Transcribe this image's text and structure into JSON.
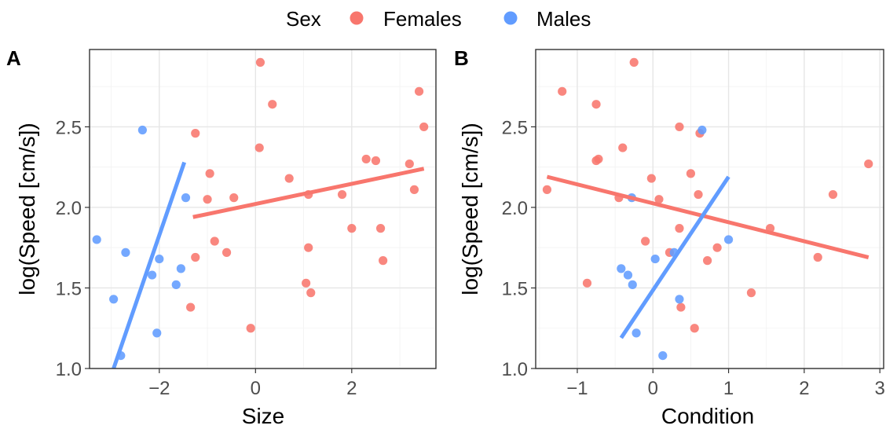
{
  "legend": {
    "title": "Sex",
    "items": [
      {
        "label": "Females",
        "color": "#F8766D"
      },
      {
        "label": "Males",
        "color": "#619CFF"
      }
    ]
  },
  "chart_data": [
    {
      "type": "scatter",
      "panel_label": "A",
      "xlabel": "Size",
      "ylabel": "log(Speed [cm/s])",
      "xlim": [
        -3.45,
        3.75
      ],
      "ylim": [
        1.0,
        2.98
      ],
      "xticks": [
        -2,
        0,
        2
      ],
      "yticks": [
        1.0,
        1.5,
        2.0,
        2.5
      ],
      "grid": true,
      "series": [
        {
          "name": "Females",
          "color": "#F8766D",
          "points": [
            {
              "x": 0.1,
              "y": 2.9
            },
            {
              "x": 0.35,
              "y": 2.64
            },
            {
              "x": 3.4,
              "y": 2.72
            },
            {
              "x": 3.5,
              "y": 2.5
            },
            {
              "x": -1.25,
              "y": 2.46
            },
            {
              "x": 0.08,
              "y": 2.37
            },
            {
              "x": 2.3,
              "y": 2.3
            },
            {
              "x": 2.5,
              "y": 2.29
            },
            {
              "x": 3.2,
              "y": 2.27
            },
            {
              "x": -0.95,
              "y": 2.21
            },
            {
              "x": 0.7,
              "y": 2.18
            },
            {
              "x": 3.3,
              "y": 2.11
            },
            {
              "x": 1.1,
              "y": 2.08
            },
            {
              "x": 1.8,
              "y": 2.08
            },
            {
              "x": -1.0,
              "y": 2.05
            },
            {
              "x": -0.45,
              "y": 2.06
            },
            {
              "x": 2.0,
              "y": 1.87
            },
            {
              "x": 2.6,
              "y": 1.87
            },
            {
              "x": -0.85,
              "y": 1.79
            },
            {
              "x": 1.1,
              "y": 1.75
            },
            {
              "x": -0.6,
              "y": 1.72
            },
            {
              "x": -1.25,
              "y": 1.69
            },
            {
              "x": 2.65,
              "y": 1.67
            },
            {
              "x": 1.05,
              "y": 1.53
            },
            {
              "x": 1.15,
              "y": 1.47
            },
            {
              "x": -1.35,
              "y": 1.38
            },
            {
              "x": -0.1,
              "y": 1.25
            }
          ],
          "fit": {
            "x": [
              -1.3,
              3.5
            ],
            "y": [
              1.94,
              2.24
            ]
          }
        },
        {
          "name": "Males",
          "color": "#619CFF",
          "points": [
            {
              "x": -2.35,
              "y": 2.48
            },
            {
              "x": -1.45,
              "y": 2.06
            },
            {
              "x": -3.3,
              "y": 1.8
            },
            {
              "x": -2.7,
              "y": 1.72
            },
            {
              "x": -2.0,
              "y": 1.68
            },
            {
              "x": -1.55,
              "y": 1.62
            },
            {
              "x": -2.15,
              "y": 1.58
            },
            {
              "x": -1.65,
              "y": 1.52
            },
            {
              "x": -2.95,
              "y": 1.43
            },
            {
              "x": -2.05,
              "y": 1.22
            },
            {
              "x": -2.8,
              "y": 1.08
            }
          ],
          "fit": {
            "x": [
              -2.95,
              -1.48
            ],
            "y": [
              1.0,
              2.28
            ]
          }
        }
      ]
    },
    {
      "type": "scatter",
      "panel_label": "B",
      "xlabel": "Condition",
      "ylabel": "log(Speed [cm/s])",
      "xlim": [
        -1.55,
        3.05
      ],
      "ylim": [
        1.0,
        2.98
      ],
      "xticks": [
        -1,
        0,
        1,
        2,
        3
      ],
      "yticks": [
        1.0,
        1.5,
        2.0,
        2.5
      ],
      "grid": true,
      "series": [
        {
          "name": "Females",
          "color": "#F8766D",
          "points": [
            {
              "x": -0.25,
              "y": 2.9
            },
            {
              "x": -1.2,
              "y": 2.72
            },
            {
              "x": -0.75,
              "y": 2.64
            },
            {
              "x": 0.35,
              "y": 2.5
            },
            {
              "x": 0.62,
              "y": 2.46
            },
            {
              "x": -0.4,
              "y": 2.37
            },
            {
              "x": -0.72,
              "y": 2.3
            },
            {
              "x": -0.75,
              "y": 2.29
            },
            {
              "x": 2.85,
              "y": 2.27
            },
            {
              "x": 0.5,
              "y": 2.21
            },
            {
              "x": -0.02,
              "y": 2.18
            },
            {
              "x": -1.4,
              "y": 2.11
            },
            {
              "x": 0.6,
              "y": 2.08
            },
            {
              "x": 2.38,
              "y": 2.08
            },
            {
              "x": 0.08,
              "y": 2.05
            },
            {
              "x": -0.45,
              "y": 2.06
            },
            {
              "x": 1.55,
              "y": 1.87
            },
            {
              "x": 0.35,
              "y": 1.87
            },
            {
              "x": -0.1,
              "y": 1.79
            },
            {
              "x": 0.85,
              "y": 1.75
            },
            {
              "x": 0.22,
              "y": 1.72
            },
            {
              "x": 2.18,
              "y": 1.69
            },
            {
              "x": 0.72,
              "y": 1.67
            },
            {
              "x": -0.87,
              "y": 1.53
            },
            {
              "x": 1.3,
              "y": 1.47
            },
            {
              "x": 0.37,
              "y": 1.38
            },
            {
              "x": 0.55,
              "y": 1.25
            }
          ],
          "fit": {
            "x": [
              -1.4,
              2.85
            ],
            "y": [
              2.19,
              1.69
            ]
          }
        },
        {
          "name": "Males",
          "color": "#619CFF",
          "points": [
            {
              "x": 0.65,
              "y": 2.48
            },
            {
              "x": -0.28,
              "y": 2.06
            },
            {
              "x": 1.0,
              "y": 1.8
            },
            {
              "x": 0.28,
              "y": 1.72
            },
            {
              "x": 0.03,
              "y": 1.68
            },
            {
              "x": -0.42,
              "y": 1.62
            },
            {
              "x": -0.33,
              "y": 1.58
            },
            {
              "x": -0.27,
              "y": 1.52
            },
            {
              "x": 0.35,
              "y": 1.43
            },
            {
              "x": -0.22,
              "y": 1.22
            },
            {
              "x": 0.13,
              "y": 1.08
            }
          ],
          "fit": {
            "x": [
              -0.42,
              1.0
            ],
            "y": [
              1.19,
              2.19
            ]
          }
        }
      ]
    }
  ]
}
